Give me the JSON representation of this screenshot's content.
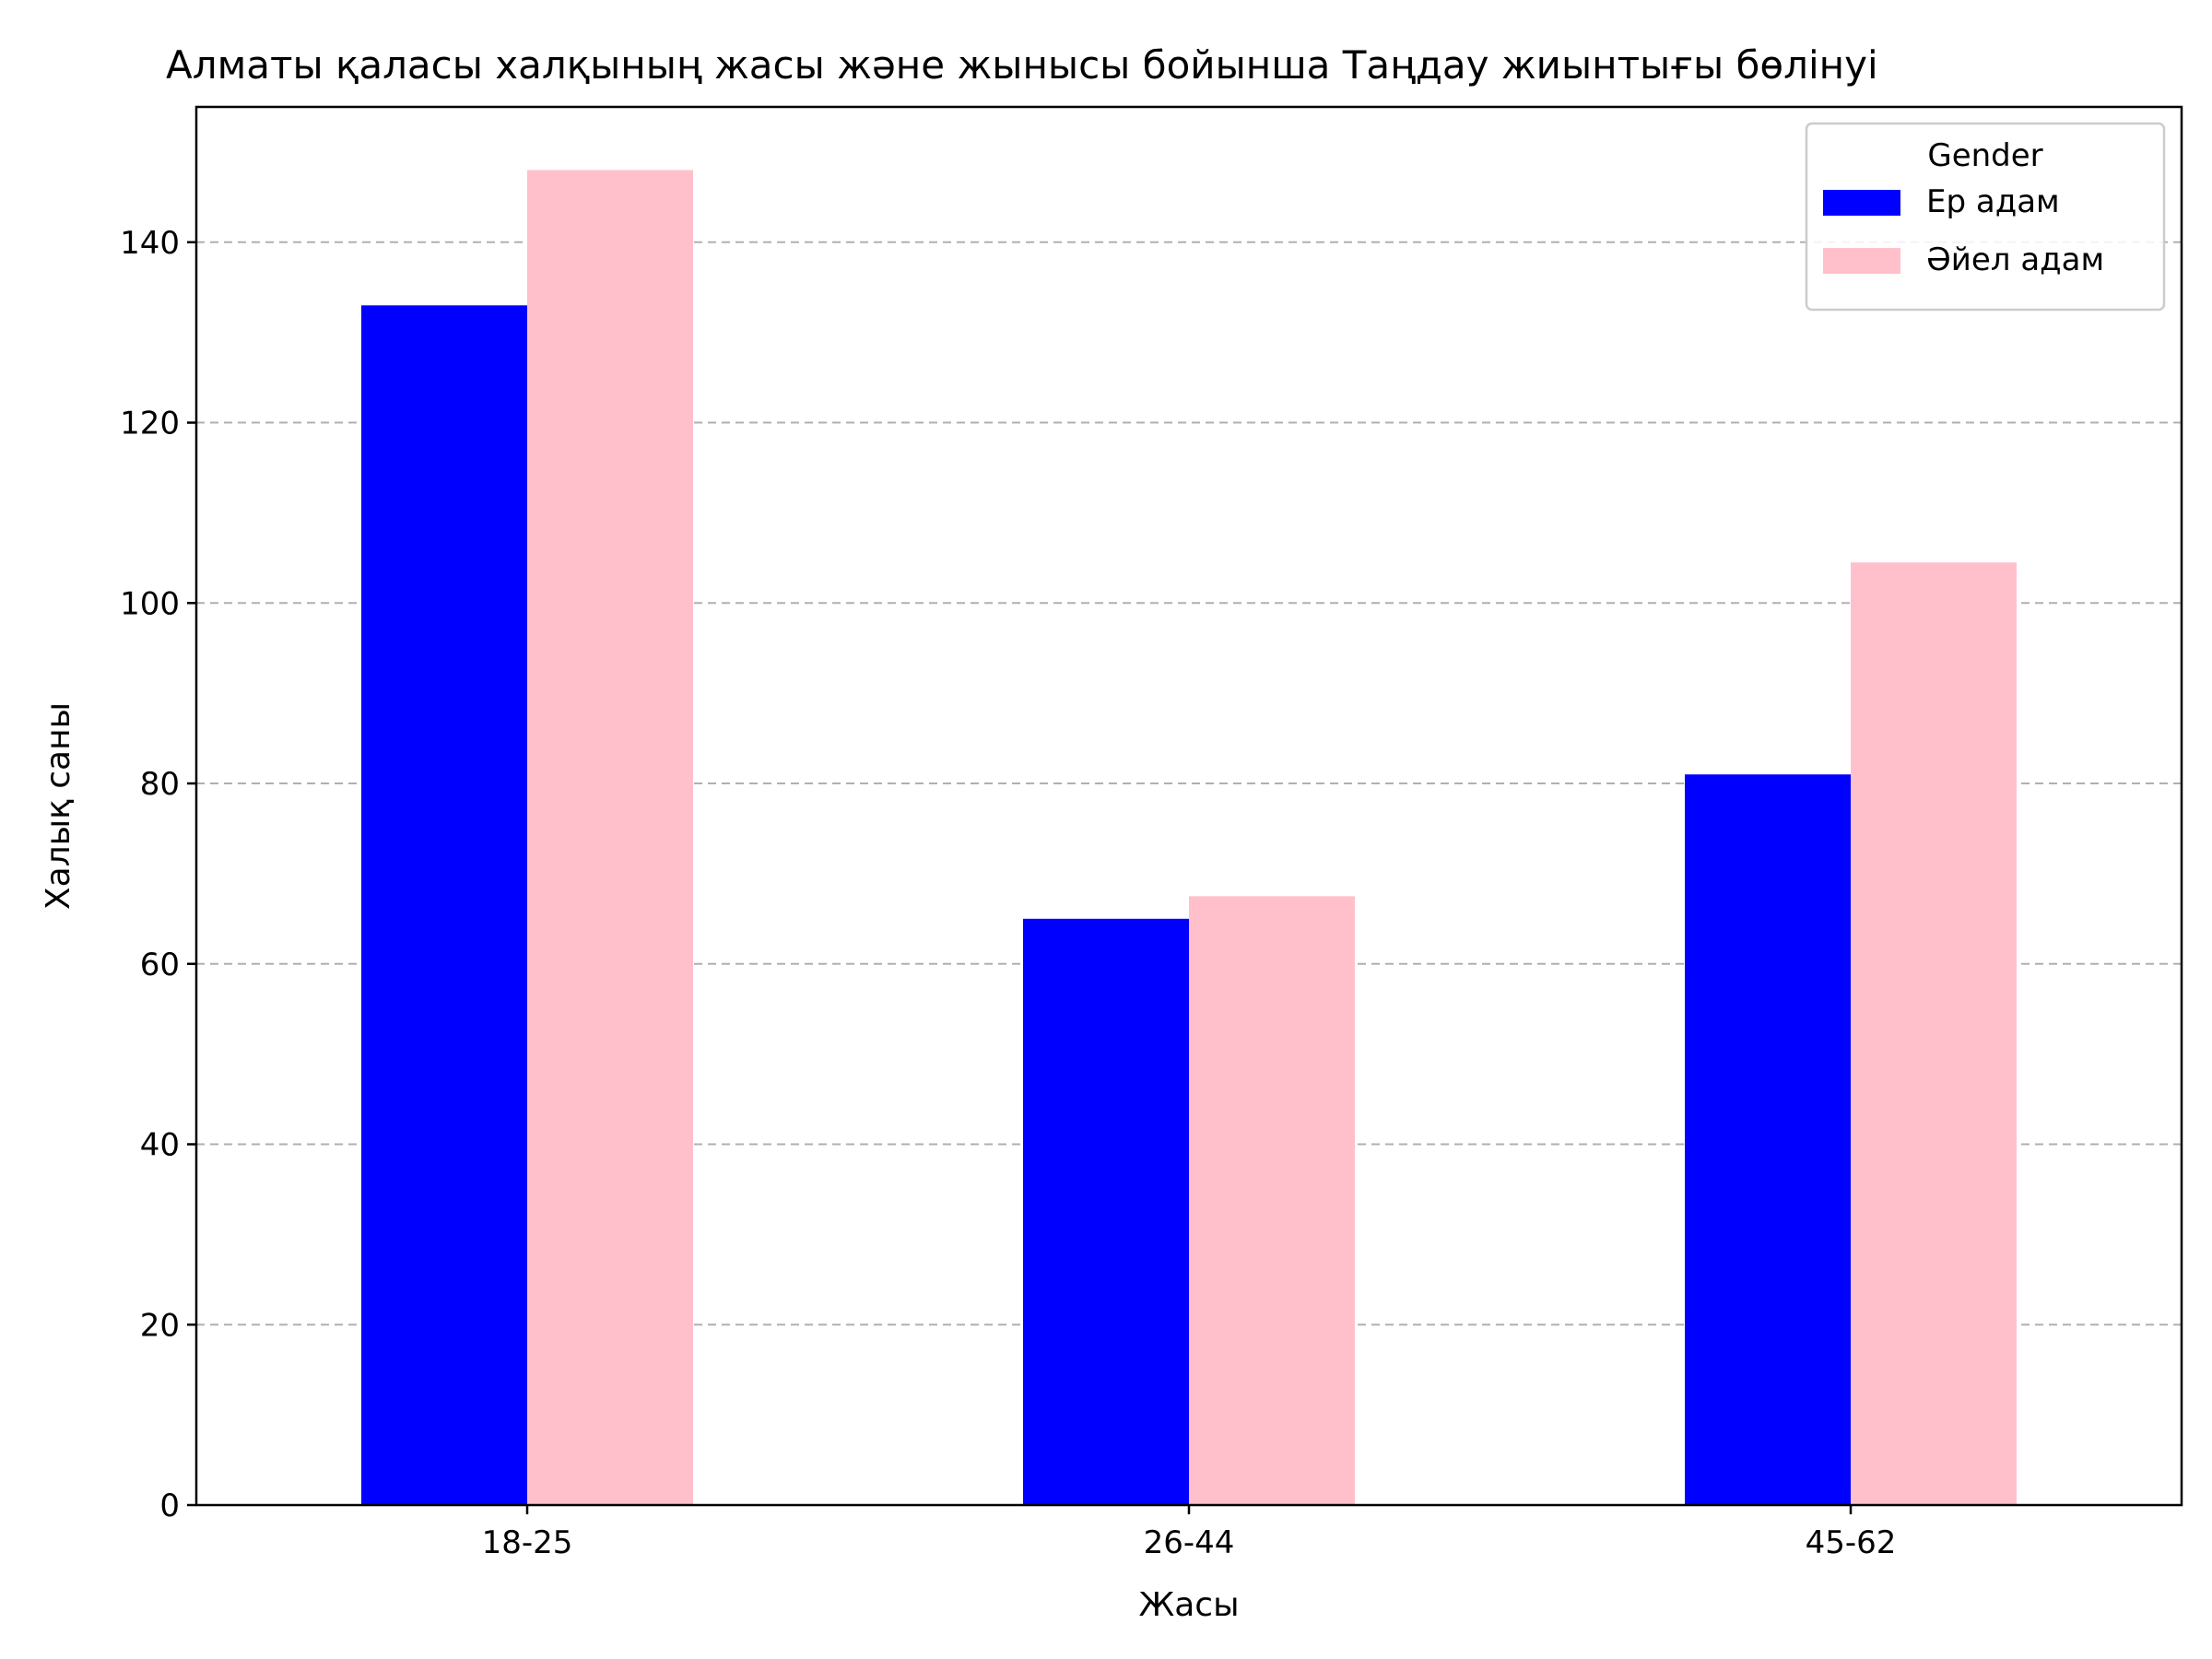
{
  "chart_data": {
    "type": "bar",
    "title": "Алматы қаласы халқының жасы және жынысы бойынша Таңдау жиынтығы бөлінуі",
    "xlabel": "Жасы",
    "ylabel": "Халық саны",
    "categories": [
      "18-25",
      "26-44",
      "45-62"
    ],
    "series": [
      {
        "name": "Ер адам",
        "values": [
          133,
          65,
          81
        ],
        "color": "#0000ff"
      },
      {
        "name": "Әйел адам",
        "values": [
          148,
          67.5,
          104.5
        ],
        "color": "#ffc0cb"
      }
    ],
    "ylim": [
      0,
      155
    ],
    "yticks": [
      0,
      20,
      40,
      60,
      80,
      100,
      120,
      140
    ],
    "grid": {
      "axis": "y",
      "style": "dashed",
      "color": "#b0b0b0"
    },
    "legend": {
      "title": "Gender",
      "placement": "top-right"
    }
  }
}
